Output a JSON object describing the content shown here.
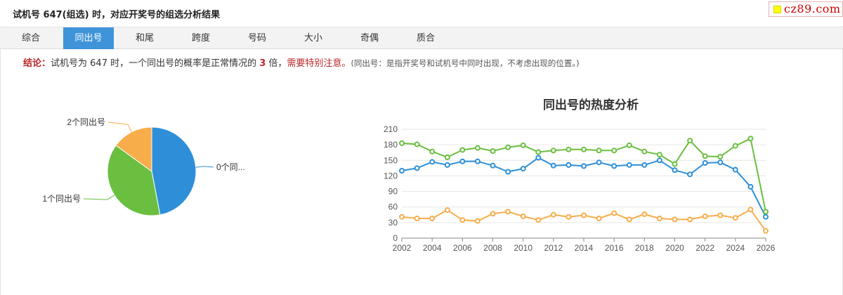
{
  "header": {
    "title": "试机号 647(组选) 时，对应开奖号的组选分析结果"
  },
  "logo": {
    "text": "cz89.com",
    "colors": {
      "square": "#ffff00",
      "text": "#cc0000"
    }
  },
  "tabs": [
    {
      "label": "综合",
      "active": false
    },
    {
      "label": "同出号",
      "active": true
    },
    {
      "label": "和尾",
      "active": false
    },
    {
      "label": "跨度",
      "active": false
    },
    {
      "label": "号码",
      "active": false
    },
    {
      "label": "大小",
      "active": false
    },
    {
      "label": "奇偶",
      "active": false
    },
    {
      "label": "质合",
      "active": false
    }
  ],
  "conclusion": {
    "label": "结论：",
    "text_before": "试机号为 647 时，一个同出号的概率是正常情况的 ",
    "multiple": "3",
    "text_after": " 倍，",
    "warning": "需要特别注意。",
    "note": "(同出号：是指开奖号和试机号中同时出现，不考虑出现的位置。)"
  },
  "colors": {
    "blue": "#2e8fd8",
    "green": "#6abf40",
    "orange": "#f7ad4a",
    "accent_red": "#b8282a",
    "tab_active": "#3f94d9"
  },
  "chart_data": [
    {
      "type": "pie",
      "slices": [
        {
          "label": "0个同...",
          "value": 47,
          "color": "#2e8fd8"
        },
        {
          "label": "1个同出号",
          "value": 38,
          "color": "#6abf40"
        },
        {
          "label": "2个同出号",
          "value": 15,
          "color": "#f7ad4a"
        }
      ]
    },
    {
      "type": "line",
      "title": "同出号的热度分析",
      "x": [
        2002,
        2003,
        2004,
        2005,
        2006,
        2007,
        2008,
        2009,
        2010,
        2011,
        2012,
        2013,
        2014,
        2015,
        2016,
        2017,
        2018,
        2019,
        2020,
        2021,
        2022,
        2023,
        2024,
        2025,
        2026
      ],
      "x_ticks": [
        "2002",
        "2004",
        "2006",
        "2008",
        "2010",
        "2012",
        "2014",
        "2016",
        "2018",
        "2020",
        "2022",
        "2024",
        "2026"
      ],
      "ylim": [
        0,
        210
      ],
      "y_ticks": [
        "0",
        "30",
        "60",
        "90",
        "120",
        "150",
        "180",
        "210"
      ],
      "grid": true,
      "series": [
        {
          "color": "#2e8fd8",
          "values": [
            130,
            135,
            147,
            141,
            148,
            148,
            140,
            128,
            134,
            155,
            140,
            141,
            139,
            146,
            139,
            141,
            141,
            150,
            131,
            123,
            145,
            146,
            132,
            99,
            41
          ]
        },
        {
          "color": "#6abf40",
          "values": [
            183,
            181,
            167,
            156,
            170,
            174,
            168,
            175,
            179,
            166,
            169,
            171,
            171,
            169,
            169,
            179,
            167,
            161,
            143,
            188,
            158,
            157,
            178,
            192,
            51
          ]
        },
        {
          "color": "#f7ad4a",
          "values": [
            41,
            38,
            38,
            54,
            35,
            33,
            47,
            51,
            42,
            35,
            45,
            41,
            44,
            38,
            48,
            36,
            46,
            38,
            36,
            36,
            42,
            44,
            39,
            55,
            14
          ]
        }
      ]
    }
  ]
}
